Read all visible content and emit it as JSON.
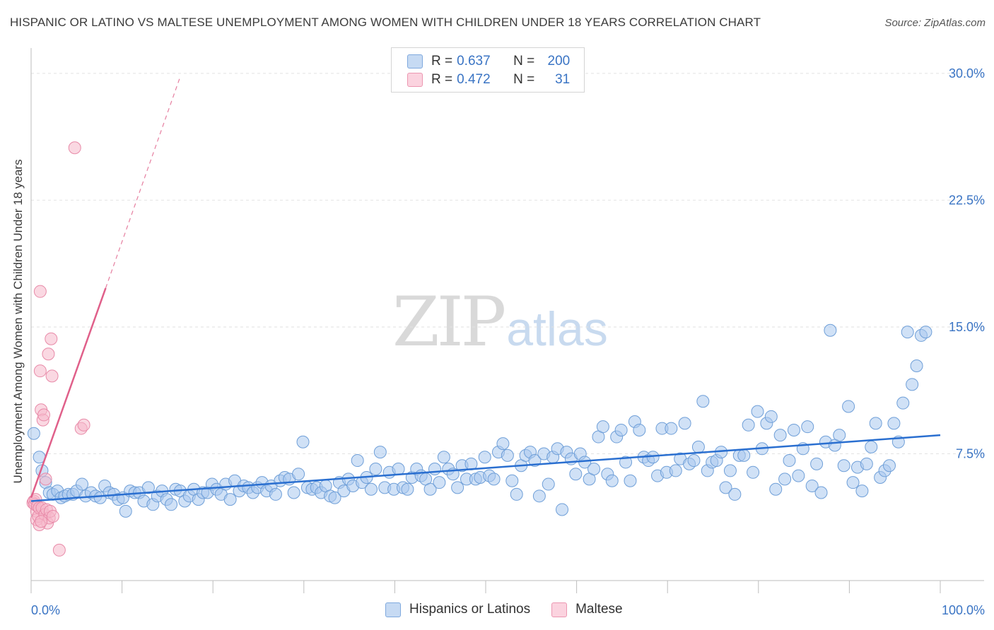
{
  "title": "HISPANIC OR LATINO VS MALTESE UNEMPLOYMENT AMONG WOMEN WITH CHILDREN UNDER 18 YEARS CORRELATION CHART",
  "source": "Source: ZipAtlas.com",
  "watermark": {
    "zip": "ZIP",
    "atlas": "atlas"
  },
  "legend": {
    "rows": [
      {
        "r_label": "R = ",
        "r_value": "0.637",
        "n_label": "N = ",
        "n_value": "200",
        "color": "#a9c8ee"
      },
      {
        "r_label": "R = ",
        "r_value": "0.472",
        "n_label": "N = ",
        "n_value": "31",
        "color": "#f6b8cb"
      }
    ]
  },
  "bottom_legend": {
    "items": [
      {
        "label": "Hispanics or Latinos",
        "color": "#a9c8ee"
      },
      {
        "label": "Maltese",
        "color": "#f6b8cb"
      }
    ]
  },
  "chart_data": {
    "type": "scatter",
    "title": "HISPANIC OR LATINO VS MALTESE UNEMPLOYMENT AMONG WOMEN WITH CHILDREN UNDER 18 YEARS CORRELATION CHART",
    "xlabel": "",
    "ylabel": "Unemployment Among Women with Children Under 18 years",
    "xlim": [
      0,
      100
    ],
    "ylim": [
      0,
      31.5
    ],
    "x_tick_labels": [
      "0.0%",
      "100.0%"
    ],
    "y_ticks": [
      7.5,
      15.0,
      22.5,
      30.0
    ],
    "y_tick_labels": [
      "7.5%",
      "15.0%",
      "22.5%",
      "30.0%"
    ],
    "grid": true,
    "series": [
      {
        "name": "Hispanics or Latinos",
        "color": "#a9c8ee",
        "stroke": "#6f9fd8",
        "trend": {
          "x": [
            0,
            100
          ],
          "y": [
            4.7,
            8.6
          ],
          "color": "#2a6fd0"
        },
        "points": [
          [
            0.3,
            8.7
          ],
          [
            0.9,
            7.3
          ],
          [
            1.2,
            6.5
          ],
          [
            1.6,
            5.8
          ],
          [
            2.0,
            5.2
          ],
          [
            2.4,
            5.1
          ],
          [
            2.9,
            5.3
          ],
          [
            3.3,
            4.9
          ],
          [
            3.7,
            5.0
          ],
          [
            4.1,
            5.1
          ],
          [
            4.6,
            5.1
          ],
          [
            5.0,
            5.3
          ],
          [
            5.6,
            5.7
          ],
          [
            6.0,
            5.0
          ],
          [
            6.6,
            5.2
          ],
          [
            7.1,
            5.0
          ],
          [
            7.6,
            4.9
          ],
          [
            8.1,
            5.6
          ],
          [
            8.6,
            5.2
          ],
          [
            9.1,
            5.1
          ],
          [
            9.6,
            4.8
          ],
          [
            10.1,
            4.9
          ],
          [
            10.4,
            4.1
          ],
          [
            10.9,
            5.3
          ],
          [
            11.4,
            5.2
          ],
          [
            11.9,
            5.2
          ],
          [
            12.4,
            4.7
          ],
          [
            12.9,
            5.5
          ],
          [
            13.4,
            4.5
          ],
          [
            13.9,
            5.0
          ],
          [
            14.4,
            5.3
          ],
          [
            14.9,
            4.8
          ],
          [
            15.4,
            4.5
          ],
          [
            15.9,
            5.4
          ],
          [
            16.4,
            5.3
          ],
          [
            16.9,
            4.7
          ],
          [
            17.4,
            5.0
          ],
          [
            17.9,
            5.4
          ],
          [
            18.4,
            4.8
          ],
          [
            18.9,
            5.2
          ],
          [
            19.4,
            5.2
          ],
          [
            19.9,
            5.7
          ],
          [
            20.4,
            5.4
          ],
          [
            20.9,
            5.1
          ],
          [
            21.4,
            5.7
          ],
          [
            21.9,
            4.8
          ],
          [
            22.4,
            5.9
          ],
          [
            22.9,
            5.3
          ],
          [
            23.4,
            5.6
          ],
          [
            23.9,
            5.5
          ],
          [
            24.4,
            5.2
          ],
          [
            24.9,
            5.5
          ],
          [
            25.4,
            5.8
          ],
          [
            25.9,
            5.3
          ],
          [
            26.4,
            5.6
          ],
          [
            26.9,
            5.1
          ],
          [
            27.4,
            5.9
          ],
          [
            27.9,
            6.1
          ],
          [
            28.4,
            6.0
          ],
          [
            28.9,
            5.2
          ],
          [
            29.4,
            6.3
          ],
          [
            29.9,
            8.2
          ],
          [
            30.4,
            5.5
          ],
          [
            30.9,
            5.4
          ],
          [
            31.4,
            5.5
          ],
          [
            31.9,
            5.2
          ],
          [
            32.4,
            5.6
          ],
          [
            32.9,
            5.0
          ],
          [
            33.4,
            4.9
          ],
          [
            33.9,
            5.8
          ],
          [
            34.4,
            5.3
          ],
          [
            34.9,
            6.0
          ],
          [
            35.4,
            5.6
          ],
          [
            35.9,
            7.1
          ],
          [
            36.4,
            5.8
          ],
          [
            36.9,
            6.1
          ],
          [
            37.4,
            5.4
          ],
          [
            37.9,
            6.6
          ],
          [
            38.4,
            7.6
          ],
          [
            38.9,
            5.5
          ],
          [
            39.4,
            6.4
          ],
          [
            39.9,
            5.4
          ],
          [
            40.4,
            6.6
          ],
          [
            40.9,
            5.5
          ],
          [
            41.4,
            5.4
          ],
          [
            41.9,
            6.1
          ],
          [
            42.4,
            6.6
          ],
          [
            42.9,
            6.2
          ],
          [
            43.4,
            6.0
          ],
          [
            43.9,
            5.4
          ],
          [
            44.4,
            6.6
          ],
          [
            44.9,
            5.8
          ],
          [
            45.4,
            7.3
          ],
          [
            45.9,
            6.6
          ],
          [
            46.4,
            6.3
          ],
          [
            46.9,
            5.5
          ],
          [
            47.4,
            6.8
          ],
          [
            47.9,
            6.0
          ],
          [
            48.4,
            6.9
          ],
          [
            48.9,
            6.0
          ],
          [
            49.4,
            6.1
          ],
          [
            49.9,
            7.3
          ],
          [
            50.4,
            6.2
          ],
          [
            50.9,
            6.0
          ],
          [
            51.4,
            7.6
          ],
          [
            51.9,
            8.1
          ],
          [
            52.4,
            7.4
          ],
          [
            52.9,
            5.9
          ],
          [
            53.4,
            5.1
          ],
          [
            53.9,
            6.8
          ],
          [
            54.4,
            7.4
          ],
          [
            54.9,
            7.6
          ],
          [
            55.4,
            7.1
          ],
          [
            55.9,
            5.0
          ],
          [
            56.4,
            7.5
          ],
          [
            56.9,
            5.7
          ],
          [
            57.4,
            7.3
          ],
          [
            57.9,
            7.8
          ],
          [
            58.4,
            4.2
          ],
          [
            58.9,
            7.6
          ],
          [
            59.4,
            7.2
          ],
          [
            59.9,
            6.3
          ],
          [
            60.4,
            7.5
          ],
          [
            60.9,
            7.0
          ],
          [
            61.4,
            6.0
          ],
          [
            61.9,
            6.6
          ],
          [
            62.4,
            8.5
          ],
          [
            62.9,
            9.1
          ],
          [
            63.4,
            6.3
          ],
          [
            63.9,
            5.9
          ],
          [
            64.4,
            8.5
          ],
          [
            64.9,
            8.9
          ],
          [
            65.4,
            7.0
          ],
          [
            65.9,
            5.9
          ],
          [
            66.4,
            9.4
          ],
          [
            66.9,
            8.9
          ],
          [
            67.4,
            7.3
          ],
          [
            67.9,
            7.1
          ],
          [
            68.4,
            7.3
          ],
          [
            68.9,
            6.2
          ],
          [
            69.4,
            9.0
          ],
          [
            69.9,
            6.4
          ],
          [
            70.4,
            9.0
          ],
          [
            70.9,
            6.5
          ],
          [
            71.4,
            7.2
          ],
          [
            71.9,
            9.3
          ],
          [
            72.4,
            6.9
          ],
          [
            72.9,
            7.1
          ],
          [
            73.4,
            7.9
          ],
          [
            73.9,
            10.6
          ],
          [
            74.4,
            6.5
          ],
          [
            74.9,
            7.0
          ],
          [
            75.4,
            7.1
          ],
          [
            75.9,
            7.6
          ],
          [
            76.4,
            5.5
          ],
          [
            76.9,
            6.5
          ],
          [
            77.4,
            5.1
          ],
          [
            77.9,
            7.4
          ],
          [
            78.4,
            7.4
          ],
          [
            78.9,
            9.2
          ],
          [
            79.4,
            6.4
          ],
          [
            79.9,
            10.0
          ],
          [
            80.4,
            7.8
          ],
          [
            80.9,
            9.3
          ],
          [
            81.4,
            9.7
          ],
          [
            81.9,
            5.4
          ],
          [
            82.4,
            8.6
          ],
          [
            82.9,
            6.0
          ],
          [
            83.4,
            7.1
          ],
          [
            83.9,
            8.9
          ],
          [
            84.4,
            6.2
          ],
          [
            84.9,
            7.8
          ],
          [
            85.4,
            9.1
          ],
          [
            85.9,
            5.6
          ],
          [
            86.4,
            6.9
          ],
          [
            86.9,
            5.2
          ],
          [
            87.4,
            8.2
          ],
          [
            87.9,
            14.8
          ],
          [
            88.4,
            8.0
          ],
          [
            88.9,
            8.6
          ],
          [
            89.4,
            6.8
          ],
          [
            89.9,
            10.3
          ],
          [
            90.4,
            5.8
          ],
          [
            90.9,
            6.7
          ],
          [
            91.4,
            5.3
          ],
          [
            91.9,
            6.9
          ],
          [
            92.4,
            7.9
          ],
          [
            92.9,
            9.3
          ],
          [
            93.4,
            6.1
          ],
          [
            93.9,
            6.5
          ],
          [
            94.4,
            6.8
          ],
          [
            94.9,
            9.3
          ],
          [
            95.4,
            8.2
          ],
          [
            95.9,
            10.5
          ],
          [
            96.4,
            14.7
          ],
          [
            96.9,
            11.6
          ],
          [
            97.4,
            12.7
          ],
          [
            97.9,
            14.5
          ],
          [
            98.4,
            14.7
          ]
        ]
      },
      {
        "name": "Maltese",
        "color": "#f6b8cb",
        "stroke": "#e88aa8",
        "trend": {
          "x": [
            0,
            8.2
          ],
          "y": [
            4.9,
            17.3
          ],
          "dash_to": [
            16.4,
            29.8
          ],
          "color": "#e0608a"
        },
        "points": [
          [
            0.2,
            4.6
          ],
          [
            0.3,
            4.7
          ],
          [
            0.4,
            4.5
          ],
          [
            0.5,
            4.8
          ],
          [
            0.6,
            4.1
          ],
          [
            0.6,
            3.6
          ],
          [
            0.7,
            4.4
          ],
          [
            0.8,
            3.8
          ],
          [
            0.9,
            4.3
          ],
          [
            1.0,
            17.1
          ],
          [
            1.0,
            12.4
          ],
          [
            1.1,
            10.1
          ],
          [
            1.2,
            4.3
          ],
          [
            1.3,
            9.5
          ],
          [
            1.4,
            9.8
          ],
          [
            1.5,
            3.9
          ],
          [
            1.6,
            6.0
          ],
          [
            1.7,
            4.2
          ],
          [
            1.8,
            3.4
          ],
          [
            1.9,
            13.4
          ],
          [
            2.0,
            3.7
          ],
          [
            2.1,
            4.1
          ],
          [
            2.2,
            14.3
          ],
          [
            2.3,
            12.1
          ],
          [
            2.4,
            3.8
          ],
          [
            3.1,
            1.8
          ],
          [
            4.8,
            25.6
          ],
          [
            5.5,
            9.0
          ],
          [
            5.8,
            9.2
          ],
          [
            0.9,
            3.3
          ],
          [
            1.1,
            3.5
          ]
        ]
      }
    ]
  }
}
